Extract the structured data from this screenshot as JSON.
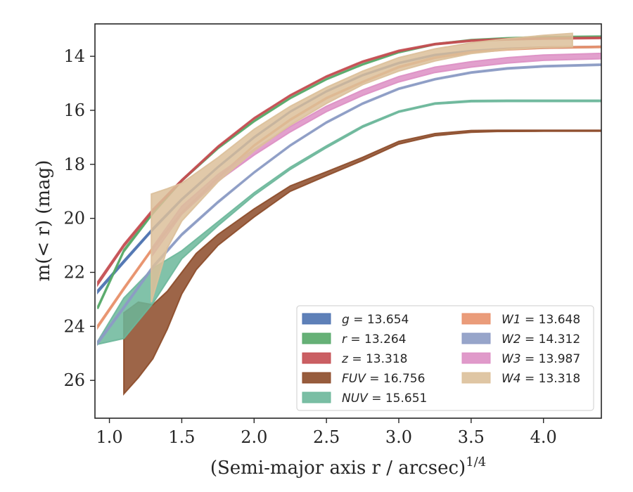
{
  "chart_data": {
    "type": "area",
    "xlabel": "(Semi-major axis r / arcsec)",
    "xlabel_sup": "1/4",
    "ylabel": "m(< r) (mag)",
    "xlim": [
      0.9,
      4.4
    ],
    "ylim": [
      27.4,
      12.8
    ],
    "y_inverted": true,
    "xticks": [
      1.0,
      1.5,
      2.0,
      2.5,
      3.0,
      3.5,
      4.0
    ],
    "xtick_labels": [
      "1.0",
      "1.5",
      "2.0",
      "2.5",
      "3.0",
      "3.5",
      "4.0"
    ],
    "yticks": [
      14,
      16,
      18,
      20,
      22,
      24,
      26
    ],
    "ytick_labels": [
      "14",
      "16",
      "18",
      "20",
      "22",
      "24",
      "26"
    ],
    "grid": false,
    "legend_position": "lower-right",
    "legend_columns": 2,
    "series": [
      {
        "name": "g",
        "label_value": "13.654",
        "color": "#4c72b0",
        "x": [
          0.92,
          1.1,
          1.3,
          1.5,
          1.75,
          2.0,
          2.25,
          2.5,
          2.75,
          3.0,
          3.25,
          3.5,
          3.75,
          4.0,
          4.4
        ],
        "y": [
          22.7,
          21.6,
          20.4,
          19.3,
          18.1,
          17.0,
          16.05,
          15.3,
          14.7,
          14.25,
          13.95,
          13.8,
          13.72,
          13.68,
          13.65
        ],
        "width": [
          0.1,
          0.09,
          0.08,
          0.06,
          0.05,
          0.05,
          0.04,
          0.04,
          0.04,
          0.04,
          0.04,
          0.04,
          0.04,
          0.04,
          0.04
        ]
      },
      {
        "name": "r",
        "label_value": "13.264",
        "color": "#55a868",
        "x": [
          0.92,
          1.1,
          1.3,
          1.5,
          1.75,
          2.0,
          2.25,
          2.5,
          2.75,
          3.0,
          3.25,
          3.5,
          3.75,
          4.0,
          4.4
        ],
        "y": [
          23.3,
          21.2,
          19.8,
          18.6,
          17.4,
          16.4,
          15.55,
          14.85,
          14.3,
          13.85,
          13.55,
          13.4,
          13.33,
          13.29,
          13.27
        ],
        "width": [
          0.1,
          0.09,
          0.08,
          0.06,
          0.05,
          0.05,
          0.04,
          0.04,
          0.04,
          0.04,
          0.04,
          0.04,
          0.04,
          0.04,
          0.04
        ]
      },
      {
        "name": "z",
        "label_value": "13.318",
        "color": "#c44e52",
        "x": [
          0.92,
          1.1,
          1.3,
          1.5,
          1.75,
          2.0,
          2.25,
          2.5,
          2.75,
          3.0,
          3.25,
          3.5,
          3.75,
          4.0,
          4.4
        ],
        "y": [
          22.4,
          21.0,
          19.7,
          18.6,
          17.35,
          16.3,
          15.45,
          14.75,
          14.2,
          13.8,
          13.55,
          13.42,
          13.37,
          13.34,
          13.32
        ],
        "width": [
          0.12,
          0.1,
          0.08,
          0.07,
          0.06,
          0.05,
          0.05,
          0.05,
          0.05,
          0.05,
          0.05,
          0.05,
          0.05,
          0.05,
          0.05
        ]
      },
      {
        "name": "FUV",
        "label_value": "16.756",
        "color": "#8c4a28",
        "x": [
          1.1,
          1.2,
          1.3,
          1.4,
          1.5,
          1.6,
          1.75,
          2.0,
          2.25,
          2.5,
          2.75,
          3.0,
          3.25,
          3.5,
          3.68,
          4.0,
          4.4
        ],
        "y": [
          25.0,
          24.5,
          24.2,
          23.4,
          22.4,
          21.6,
          20.8,
          19.8,
          18.9,
          18.35,
          17.8,
          17.2,
          16.9,
          16.78,
          16.76,
          16.756,
          16.756
        ],
        "width": [
          3.0,
          2.8,
          2.0,
          1.4,
          0.8,
          0.6,
          0.4,
          0.3,
          0.2,
          0.15,
          0.12,
          0.1,
          0.08,
          0.07,
          0.05,
          0.04,
          0.04
        ]
      },
      {
        "name": "NUV",
        "label_value": "15.651",
        "color": "#6bb79a",
        "x": [
          0.92,
          1.1,
          1.3,
          1.5,
          1.75,
          2.0,
          2.25,
          2.5,
          2.75,
          3.0,
          3.25,
          3.5,
          3.75,
          4.0,
          4.4
        ],
        "y": [
          24.6,
          23.7,
          22.5,
          21.35,
          20.2,
          19.1,
          18.15,
          17.35,
          16.6,
          16.05,
          15.75,
          15.66,
          15.65,
          15.65,
          15.65
        ],
        "width": [
          0.12,
          1.5,
          1.3,
          0.3,
          0.15,
          0.1,
          0.08,
          0.07,
          0.06,
          0.05,
          0.05,
          0.05,
          0.05,
          0.05,
          0.05
        ]
      },
      {
        "name": "W1",
        "label_value": "13.648",
        "color": "#e8916c",
        "x": [
          0.92,
          1.1,
          1.3,
          1.5,
          1.75,
          2.0,
          2.25,
          2.5,
          2.75,
          3.0,
          3.25,
          3.5,
          3.75,
          4.0,
          4.4
        ],
        "y": [
          24.0,
          22.6,
          21.1,
          19.8,
          18.5,
          17.3,
          16.35,
          15.55,
          14.95,
          14.4,
          14.05,
          13.85,
          13.74,
          13.68,
          13.65
        ],
        "width": [
          0.1,
          0.09,
          0.08,
          0.06,
          0.05,
          0.05,
          0.05,
          0.05,
          0.05,
          0.05,
          0.05,
          0.05,
          0.05,
          0.05,
          0.05
        ]
      },
      {
        "name": "W2",
        "label_value": "14.312",
        "color": "#8c9bc4",
        "x": [
          0.92,
          1.1,
          1.3,
          1.5,
          1.75,
          2.0,
          2.25,
          2.5,
          2.75,
          3.0,
          3.25,
          3.5,
          3.75,
          4.0,
          4.4
        ],
        "y": [
          24.6,
          23.3,
          21.8,
          20.6,
          19.4,
          18.3,
          17.3,
          16.45,
          15.75,
          15.2,
          14.85,
          14.6,
          14.45,
          14.37,
          14.31
        ],
        "width": [
          0.1,
          0.09,
          0.08,
          0.07,
          0.06,
          0.05,
          0.05,
          0.05,
          0.05,
          0.05,
          0.05,
          0.05,
          0.05,
          0.05,
          0.05
        ]
      },
      {
        "name": "W3",
        "label_value": "13.987",
        "color": "#dd8fc4",
        "x": [
          1.3,
          1.5,
          1.75,
          2.0,
          2.25,
          2.5,
          2.75,
          3.0,
          3.25,
          3.5,
          3.75,
          4.0,
          4.4
        ],
        "y": [
          21.2,
          19.7,
          18.5,
          17.55,
          16.7,
          15.95,
          15.35,
          14.85,
          14.5,
          14.3,
          14.15,
          14.05,
          13.99
        ],
        "width": [
          0.3,
          0.3,
          0.25,
          0.22,
          0.2,
          0.2,
          0.2,
          0.2,
          0.2,
          0.2,
          0.2,
          0.2,
          0.2
        ]
      },
      {
        "name": "W4",
        "label_value": "13.318",
        "color": "#dcc09a",
        "x": [
          1.29,
          1.4,
          1.5,
          1.75,
          2.0,
          2.25,
          2.5,
          2.75,
          3.0,
          3.25,
          3.5,
          3.75,
          4.0,
          4.2
        ],
        "y": [
          21.1,
          20.0,
          19.4,
          18.2,
          17.1,
          16.2,
          15.45,
          14.8,
          14.3,
          13.95,
          13.7,
          13.55,
          13.45,
          13.4
        ],
        "width": [
          4.0,
          2.2,
          1.4,
          0.9,
          0.8,
          0.7,
          0.6,
          0.5,
          0.5,
          0.45,
          0.4,
          0.4,
          0.45,
          0.5
        ]
      }
    ]
  }
}
